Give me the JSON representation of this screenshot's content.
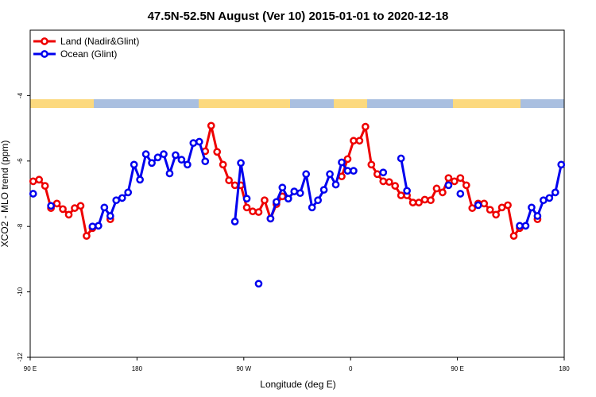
{
  "chart_data": {
    "type": "line",
    "title": "47.5N-52.5N August (Ver 10)   2015-01-01 to 2020-12-18",
    "x_label": "Longitude (deg E)",
    "y_label": "XCO2 - MLO trend (ppm)",
    "xlim": [
      90,
      540
    ],
    "xticks": [
      {
        "value": 90,
        "label": "90 E"
      },
      {
        "value": 180,
        "label": "180"
      },
      {
        "value": 270,
        "label": "90 W"
      },
      {
        "value": 360,
        "label": "0"
      },
      {
        "value": 450,
        "label": "90 E"
      },
      {
        "value": 540,
        "label": "180"
      }
    ],
    "ylim": [
      -12,
      -2
    ],
    "yticks": [
      -12,
      -10,
      -8,
      -6,
      -4
    ],
    "legend": "top-left",
    "x": [
      92.5,
      97.5,
      102.5,
      107.5,
      112.5,
      117.5,
      122.5,
      127.5,
      132.5,
      137.5,
      142.5,
      147.5,
      152.5,
      157.5,
      162.5,
      167.5,
      172.5,
      177.5,
      182.5,
      187.5,
      192.5,
      197.5,
      202.5,
      207.5,
      212.5,
      217.5,
      222.5,
      227.5,
      232.5,
      237.5,
      242.5,
      247.5,
      252.5,
      257.5,
      262.5,
      267.5,
      272.5,
      277.5,
      282.5,
      287.5,
      292.5,
      297.5,
      302.5,
      307.5,
      312.5,
      317.5,
      322.5,
      327.5,
      332.5,
      337.5,
      342.5,
      347.5,
      352.5,
      357.5,
      362.5,
      367.5,
      372.5,
      377.5,
      382.5,
      387.5,
      392.5,
      397.5,
      402.5,
      407.5,
      412.5,
      417.5,
      422.5,
      427.5,
      432.5,
      437.5,
      442.5,
      447.5,
      452.5,
      457.5,
      462.5,
      467.5,
      472.5,
      477.5,
      482.5,
      487.5,
      492.5,
      497.5,
      502.5,
      507.5,
      512.5,
      517.5,
      522.5,
      527.5,
      532.5,
      537.5
    ],
    "series": [
      {
        "name": "Land (Nadir&Glint)",
        "color": "#ee0000",
        "values": [
          -6.62,
          -6.57,
          -6.76,
          -7.44,
          -7.3,
          -7.47,
          -7.64,
          -7.44,
          -7.37,
          -8.29,
          -8.05,
          null,
          null,
          -7.78,
          null,
          null,
          null,
          null,
          null,
          null,
          null,
          null,
          null,
          null,
          null,
          null,
          null,
          null,
          null,
          -5.7,
          -4.92,
          -5.72,
          -6.11,
          -6.59,
          -6.74,
          -6.74,
          -7.42,
          -7.54,
          -7.56,
          -7.2,
          -7.76,
          -7.32,
          -7.08,
          null,
          null,
          null,
          null,
          null,
          null,
          null,
          null,
          null,
          -6.47,
          -5.94,
          -5.38,
          -5.38,
          -4.95,
          -6.11,
          -6.4,
          -6.62,
          -6.64,
          -6.76,
          -7.05,
          -7.05,
          -7.27,
          -7.27,
          -7.18,
          -7.2,
          -6.84,
          -6.96,
          -6.52,
          -6.62,
          -6.52,
          -6.74,
          -7.44,
          -7.3,
          -7.3,
          -7.49,
          -7.64,
          -7.42,
          -7.35,
          -8.29,
          -8.05,
          null,
          null,
          -7.78,
          null,
          null,
          null,
          null
        ]
      },
      {
        "name": "Ocean (Glint)",
        "color": "#0000ee",
        "values": [
          -7.0,
          null,
          null,
          -7.37,
          null,
          null,
          null,
          null,
          null,
          null,
          -8.0,
          -7.98,
          -7.42,
          -7.68,
          -7.2,
          -7.13,
          -6.96,
          -6.11,
          -6.57,
          -5.79,
          -6.06,
          -5.89,
          -5.79,
          -6.38,
          -5.82,
          -5.96,
          -6.11,
          -5.45,
          -5.41,
          -6.01,
          null,
          null,
          null,
          null,
          -7.85,
          -6.06,
          -7.15,
          null,
          -9.75,
          null,
          -7.76,
          -7.25,
          -6.81,
          -7.15,
          -6.93,
          -6.98,
          -6.4,
          -7.42,
          -7.2,
          -6.88,
          -6.4,
          -6.72,
          -6.04,
          -6.3,
          -6.3,
          null,
          null,
          null,
          null,
          -6.35,
          null,
          null,
          -5.92,
          -6.91,
          null,
          null,
          null,
          null,
          null,
          null,
          -6.74,
          null,
          -7.0,
          null,
          null,
          -7.35,
          null,
          null,
          null,
          null,
          null,
          null,
          -7.98,
          -7.98,
          -7.42,
          -7.68,
          -7.2,
          -7.13,
          -6.96,
          -6.11
        ]
      }
    ]
  }
}
